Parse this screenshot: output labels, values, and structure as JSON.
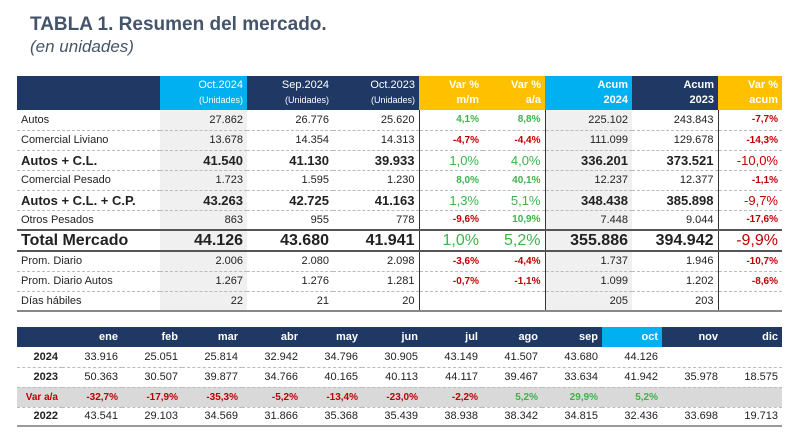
{
  "title": "TABLA 1. Resumen del mercado.",
  "subtitle": "(en unidades)",
  "colors": {
    "header": "#1f3864",
    "highlight": "#00b0f0",
    "variation": "#ffc000",
    "positive": "#3cb44b",
    "negative": "#c00000"
  },
  "summary": {
    "headers": [
      {
        "main": "Oct.2024",
        "sub": "(Unidades)"
      },
      {
        "main": "Sep.2024",
        "sub": "(Unidades)"
      },
      {
        "main": "Oct.2023",
        "sub": "(Unidades)"
      },
      {
        "main": "Var %",
        "sub": "m/m"
      },
      {
        "main": "Var %",
        "sub": "a/a"
      },
      {
        "main": "Acum",
        "sub": "2024"
      },
      {
        "main": "Acum",
        "sub": "2023"
      },
      {
        "main": "Var %",
        "sub": "acum"
      }
    ],
    "rows": [
      {
        "label": "Autos",
        "v": [
          "27.862",
          "26.776",
          "25.620",
          "4,1%",
          "8,8%",
          "225.102",
          "243.843",
          "-7,7%"
        ]
      },
      {
        "label": "Comercial Liviano",
        "v": [
          "13.678",
          "14.354",
          "14.313",
          "-4,7%",
          "-4,4%",
          "111.099",
          "129.678",
          "-14,3%"
        ]
      },
      {
        "label": "Autos + C.L.",
        "v": [
          "41.540",
          "41.130",
          "39.933",
          "1,0%",
          "4,0%",
          "336.201",
          "373.521",
          "-10,0%"
        ]
      },
      {
        "label": "Comercial Pesado",
        "v": [
          "1.723",
          "1.595",
          "1.230",
          "8,0%",
          "40,1%",
          "12.237",
          "12.377",
          "-1,1%"
        ]
      },
      {
        "label": "Autos + C.L. + C.P.",
        "v": [
          "43.263",
          "42.725",
          "41.163",
          "1,3%",
          "5,1%",
          "348.438",
          "385.898",
          "-9,7%"
        ]
      },
      {
        "label": "Otros Pesados",
        "v": [
          "863",
          "955",
          "778",
          "-9,6%",
          "10,9%",
          "7.448",
          "9.044",
          "-17,6%"
        ]
      },
      {
        "label": "Total Mercado",
        "v": [
          "44.126",
          "43.680",
          "41.941",
          "1,0%",
          "5,2%",
          "355.886",
          "394.942",
          "-9,9%"
        ]
      },
      {
        "label": "Prom. Diario",
        "v": [
          "2.006",
          "2.080",
          "2.098",
          "-3,6%",
          "-4,4%",
          "1.737",
          "1.946",
          "-10,7%"
        ]
      },
      {
        "label": "Prom. Diario Autos",
        "v": [
          "1.267",
          "1.276",
          "1.281",
          "-0,7%",
          "-1,1%",
          "1.099",
          "1.202",
          "-8,6%"
        ]
      },
      {
        "label": "Días hábiles",
        "v": [
          "22",
          "21",
          "20",
          "",
          "",
          "205",
          "203",
          ""
        ]
      }
    ]
  },
  "monthly": {
    "months": [
      "ene",
      "feb",
      "mar",
      "abr",
      "may",
      "jun",
      "jul",
      "ago",
      "sep",
      "oct",
      "nov",
      "dic"
    ],
    "rows": [
      {
        "label": "2024",
        "v": [
          "33.916",
          "25.051",
          "25.814",
          "32.942",
          "34.796",
          "30.905",
          "43.149",
          "41.507",
          "43.680",
          "44.126",
          "",
          ""
        ]
      },
      {
        "label": "2023",
        "v": [
          "50.363",
          "30.507",
          "39.877",
          "34.766",
          "40.165",
          "40.113",
          "44.117",
          "39.467",
          "33.634",
          "41.942",
          "35.978",
          "18.575"
        ]
      },
      {
        "label": "Var a/a",
        "v": [
          "-32,7%",
          "-17,9%",
          "-35,3%",
          "-5,2%",
          "-13,4%",
          "-23,0%",
          "-2,2%",
          "5,2%",
          "29,9%",
          "5,2%",
          "",
          ""
        ]
      },
      {
        "label": "2022",
        "v": [
          "43.541",
          "29.103",
          "34.569",
          "31.866",
          "35.368",
          "35.439",
          "38.938",
          "38.342",
          "34.815",
          "32.436",
          "33.698",
          "19.713"
        ]
      }
    ]
  }
}
